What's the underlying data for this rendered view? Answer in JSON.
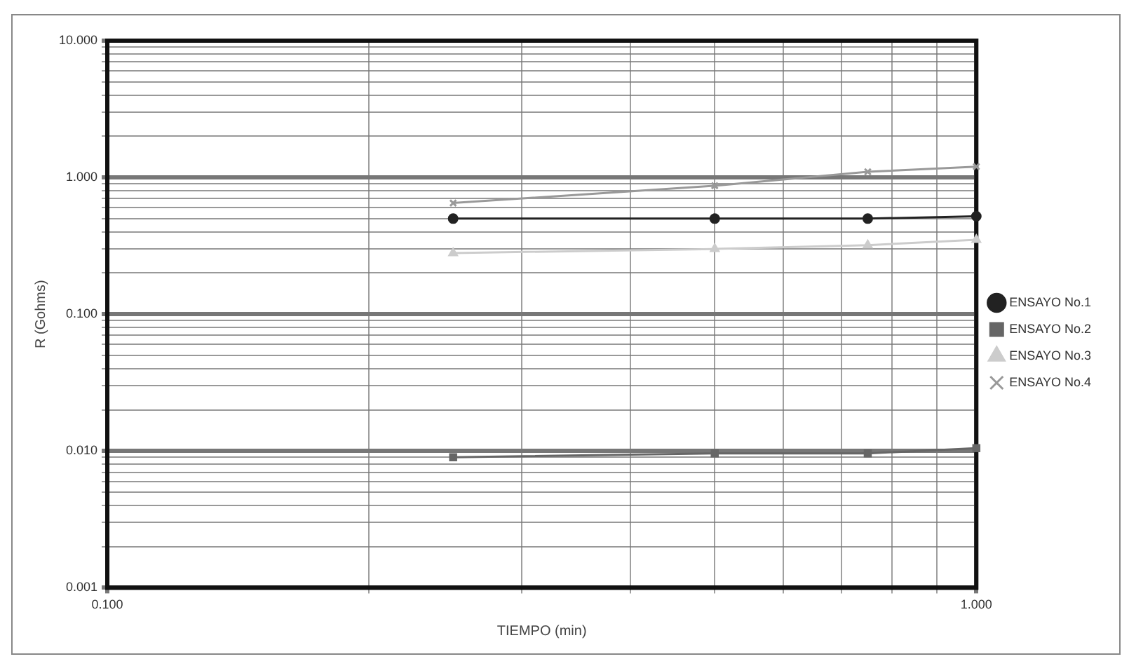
{
  "chart_data": {
    "type": "line",
    "xlabel": "TIEMPO (min)",
    "ylabel": "R (Gohms)",
    "x": [
      0.25,
      0.5,
      0.75,
      1.0
    ],
    "series": [
      {
        "name": "ENSAYO No.1",
        "color": "#222222",
        "marker": "circle",
        "values": [
          0.5,
          0.5,
          0.5,
          0.52
        ]
      },
      {
        "name": "ENSAYO No.2",
        "color": "#666666",
        "marker": "square",
        "values": [
          0.009,
          0.0096,
          0.0096,
          0.0105
        ]
      },
      {
        "name": "ENSAYO No.3",
        "color": "#cccccc",
        "marker": "triangle",
        "values": [
          0.28,
          0.3,
          0.32,
          0.35
        ]
      },
      {
        "name": "ENSAYO No.4",
        "color": "#999999",
        "marker": "cross",
        "values": [
          0.65,
          0.87,
          1.1,
          1.2
        ]
      }
    ],
    "log": "xy",
    "xlim": [
      0.1,
      1
    ],
    "ylim": [
      0.001,
      10
    ],
    "xticks": [
      {
        "value": 0.1,
        "label": "0.100"
      },
      {
        "value": 0.2,
        "label": null
      },
      {
        "value": 0.3,
        "label": null
      },
      {
        "value": 0.4,
        "label": null
      },
      {
        "value": 0.5,
        "label": null
      },
      {
        "value": 0.6,
        "label": null
      },
      {
        "value": 0.7,
        "label": null
      },
      {
        "value": 0.8,
        "label": null
      },
      {
        "value": 0.9,
        "label": null
      },
      {
        "value": 1,
        "label": "1.000"
      }
    ],
    "yticks": [
      {
        "value": 0.001,
        "label": "0.001"
      },
      {
        "value": 0.002,
        "label": null
      },
      {
        "value": 0.003,
        "label": null
      },
      {
        "value": 0.004,
        "label": null
      },
      {
        "value": 0.005,
        "label": null
      },
      {
        "value": 0.006,
        "label": null
      },
      {
        "value": 0.007,
        "label": null
      },
      {
        "value": 0.008,
        "label": null
      },
      {
        "value": 0.009,
        "label": null
      },
      {
        "value": 0.01,
        "label": "0.010"
      },
      {
        "value": 0.02,
        "label": null
      },
      {
        "value": 0.03,
        "label": null
      },
      {
        "value": 0.04,
        "label": null
      },
      {
        "value": 0.05,
        "label": null
      },
      {
        "value": 0.06,
        "label": null
      },
      {
        "value": 0.07,
        "label": null
      },
      {
        "value": 0.08,
        "label": null
      },
      {
        "value": 0.09,
        "label": null
      },
      {
        "value": 0.1,
        "label": "0.100"
      },
      {
        "value": 0.2,
        "label": null
      },
      {
        "value": 0.3,
        "label": null
      },
      {
        "value": 0.4,
        "label": null
      },
      {
        "value": 0.5,
        "label": null
      },
      {
        "value": 0.6,
        "label": null
      },
      {
        "value": 0.7,
        "label": null
      },
      {
        "value": 0.8,
        "label": null
      },
      {
        "value": 0.9,
        "label": null
      },
      {
        "value": 1,
        "label": "1.000"
      },
      {
        "value": 2,
        "label": null
      },
      {
        "value": 3,
        "label": null
      },
      {
        "value": 4,
        "label": null
      },
      {
        "value": 5,
        "label": null
      },
      {
        "value": 6,
        "label": null
      },
      {
        "value": 7,
        "label": null
      },
      {
        "value": 8,
        "label": null
      },
      {
        "value": 9,
        "label": null
      },
      {
        "value": 10,
        "label": "10.000"
      }
    ],
    "grid": true,
    "legend": "right",
    "line_style": "solid"
  }
}
